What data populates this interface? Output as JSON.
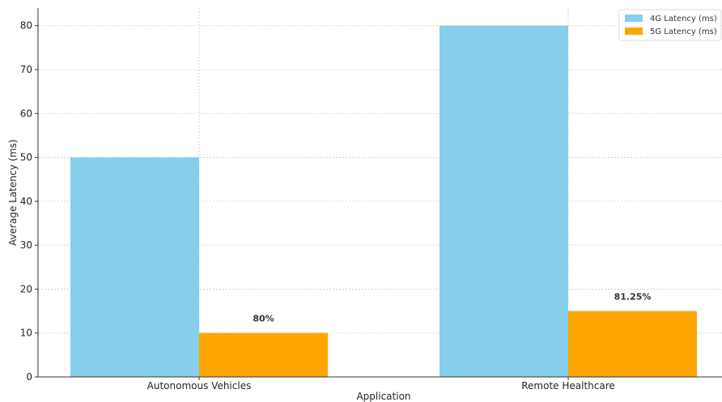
{
  "chart_data": {
    "type": "bar",
    "title": "",
    "xlabel": "Application",
    "ylabel": "Average Latency (ms)",
    "categories": [
      "Autonomous Vehicles",
      "Remote Healthcare"
    ],
    "series": [
      {
        "name": "4G Latency (ms)",
        "values": [
          50,
          80
        ],
        "color": "#87CEEB"
      },
      {
        "name": "5G Latency (ms)",
        "values": [
          10,
          15
        ],
        "color": "#FFA500"
      }
    ],
    "annotations": [
      "80%",
      "81.25%"
    ],
    "ylim": [
      0,
      84
    ],
    "yticks": [
      0,
      10,
      20,
      30,
      40,
      50,
      60,
      70,
      80
    ],
    "grid": true,
    "legend_position": "top-right"
  }
}
